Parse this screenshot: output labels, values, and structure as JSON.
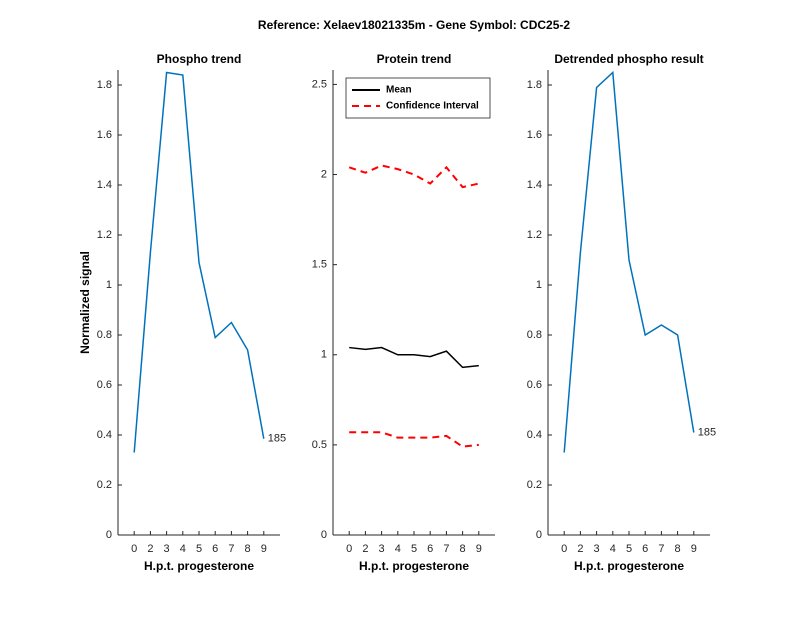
{
  "title": "Reference:  Xelaev18021335m - Gene Symbol:  CDC25-2",
  "chart_data": [
    {
      "type": "line",
      "title": "Phospho trend",
      "xlabel": "H.p.t. progesterone",
      "ylabel": "Normalized signal",
      "categories": [
        "0",
        "2",
        "3",
        "4",
        "5",
        "6",
        "7",
        "8",
        "9"
      ],
      "series": [
        {
          "color": "#0072bd",
          "values": [
            0.33,
            1.13,
            1.85,
            1.84,
            1.09,
            0.79,
            0.85,
            0.74,
            0.385
          ]
        }
      ],
      "annotation": "185",
      "ylim": [
        0,
        1.86
      ],
      "yticks": [
        0,
        0.2,
        0.4,
        0.6,
        0.8,
        1,
        1.2,
        1.4,
        1.6,
        1.8
      ]
    },
    {
      "type": "line",
      "title": "Protein trend",
      "xlabel": "H.p.t. progesterone",
      "categories": [
        "0",
        "2",
        "3",
        "4",
        "5",
        "6",
        "7",
        "8",
        "9"
      ],
      "series": [
        {
          "name": "Mean",
          "color": "#000000",
          "values": [
            1.04,
            1.03,
            1.04,
            1.0,
            1.0,
            0.99,
            1.02,
            0.93,
            0.94
          ]
        },
        {
          "name": "Confidence Interval",
          "color": "#ff0000",
          "dashed": true,
          "upper": [
            2.04,
            2.01,
            2.05,
            2.03,
            2.0,
            1.95,
            2.04,
            1.93,
            1.95
          ],
          "lower": [
            0.57,
            0.57,
            0.57,
            0.54,
            0.54,
            0.54,
            0.55,
            0.49,
            0.5
          ]
        }
      ],
      "legend": "upper right",
      "ylim": [
        0,
        2.58
      ],
      "yticks": [
        0,
        0.5,
        1,
        1.5,
        2,
        2.5
      ]
    },
    {
      "type": "line",
      "title": "Detrended phospho result",
      "xlabel": "H.p.t. progesterone",
      "categories": [
        "0",
        "2",
        "3",
        "4",
        "5",
        "6",
        "7",
        "8",
        "9"
      ],
      "series": [
        {
          "color": "#0072bd",
          "values": [
            0.33,
            1.13,
            1.79,
            1.85,
            1.1,
            0.8,
            0.84,
            0.8,
            0.41
          ]
        }
      ],
      "annotation": "185",
      "ylim": [
        0,
        1.86
      ],
      "yticks": [
        0,
        0.2,
        0.4,
        0.6,
        0.8,
        1,
        1.2,
        1.4,
        1.6,
        1.8
      ]
    }
  ]
}
